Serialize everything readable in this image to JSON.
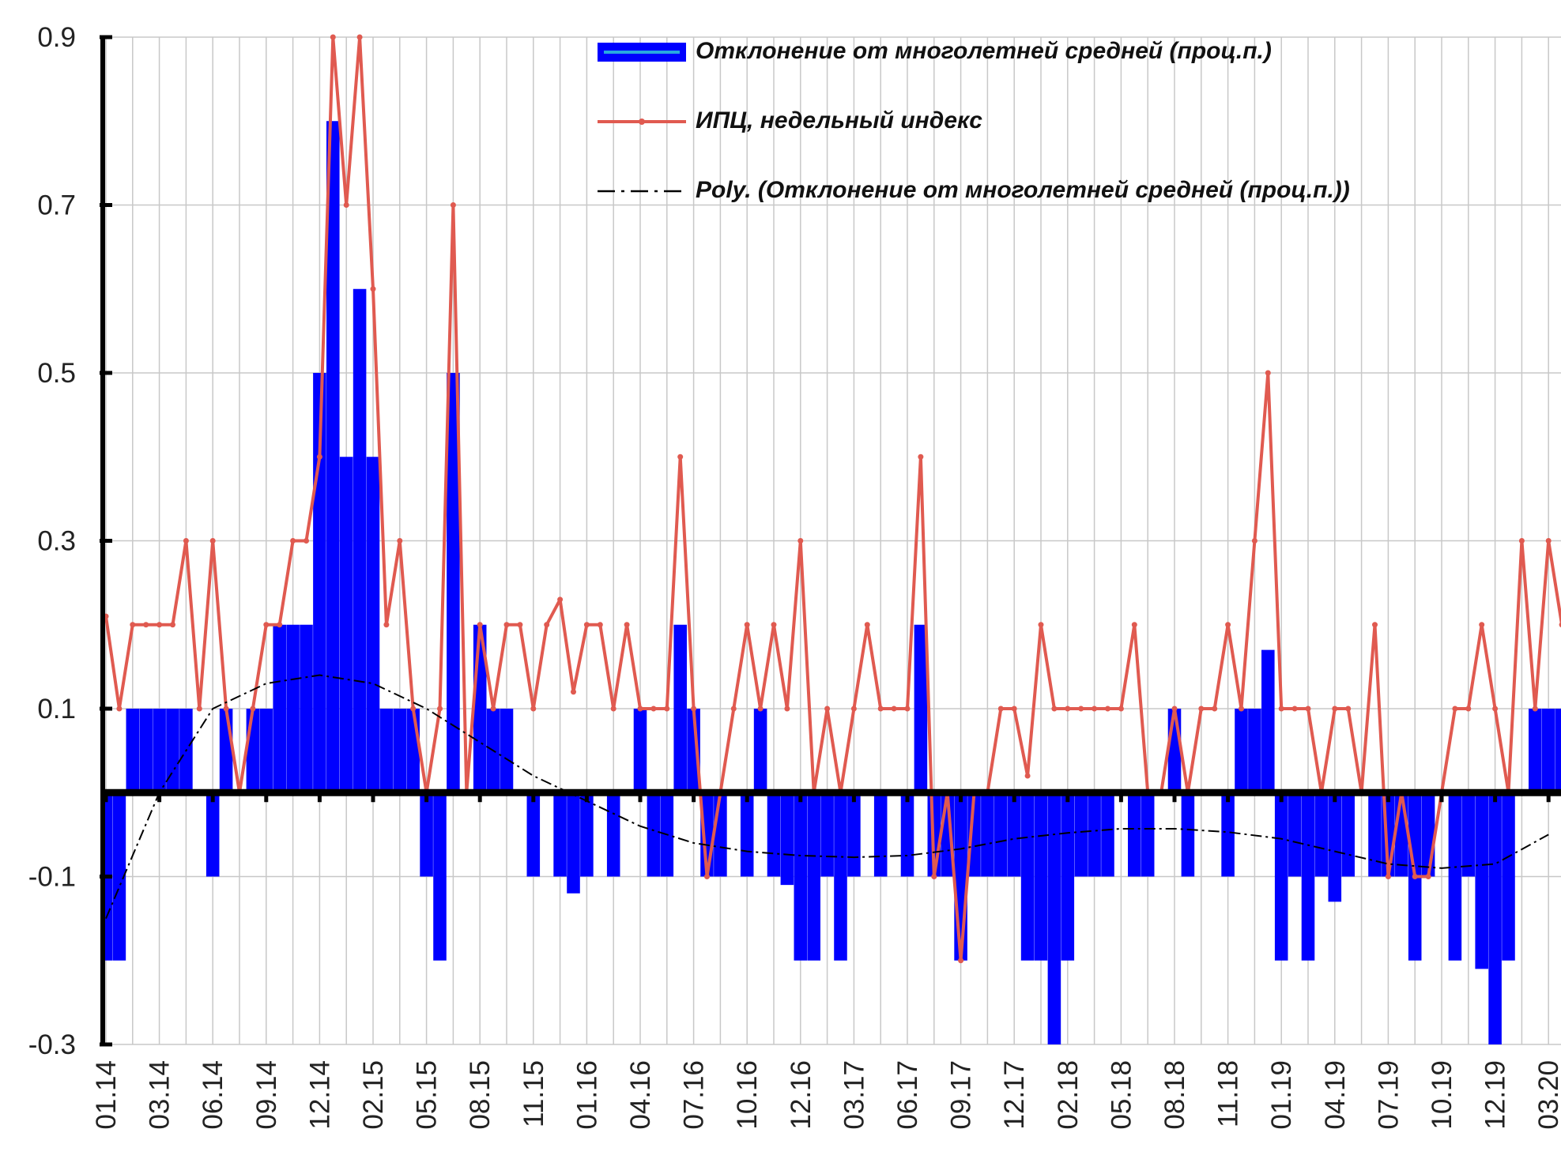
{
  "chart_data": {
    "type": "bar-line",
    "categories": [
      "01.14",
      null,
      null,
      null,
      "03.14",
      null,
      null,
      null,
      "06.14",
      null,
      null,
      null,
      "09.14",
      null,
      null,
      null,
      "12.14",
      null,
      null,
      null,
      "02.15",
      null,
      null,
      null,
      "05.15",
      null,
      null,
      null,
      "08.15",
      null,
      null,
      null,
      "11.15",
      null,
      null,
      null,
      "01.16",
      null,
      null,
      null,
      "04.16",
      null,
      null,
      null,
      "07.16",
      null,
      null,
      null,
      "10.16",
      null,
      null,
      null,
      "12.16",
      null,
      null,
      null,
      "03.17",
      null,
      null,
      null,
      "06.17",
      null,
      null,
      null,
      "09.17",
      null,
      null,
      null,
      "12.17",
      null,
      null,
      null,
      "02.18",
      null,
      null,
      null,
      "05.18",
      null,
      null,
      null,
      "08.18",
      null,
      null,
      null,
      "11.18",
      null,
      null,
      null,
      "01.19",
      null,
      null,
      null,
      "04.19",
      null,
      null,
      null,
      "07.19",
      null,
      null,
      null,
      "10.19",
      null,
      null,
      null,
      "12.19",
      null,
      null,
      null,
      "03.20",
      null,
      null
    ],
    "series": [
      {
        "name": "Отклонение от многолетней средней (проц.п.)",
        "type": "bar",
        "color": "#0000ff",
        "values": [
          -0.2,
          -0.2,
          0.1,
          0.1,
          0.1,
          0.1,
          0.1,
          0,
          -0.1,
          0.1,
          0,
          0.1,
          0.1,
          0.2,
          0.2,
          0.2,
          0.5,
          0.8,
          0.4,
          0.6,
          0.4,
          0.1,
          0.1,
          0.1,
          -0.1,
          -0.2,
          0.5,
          0,
          0.2,
          0.1,
          0.1,
          0,
          -0.1,
          0,
          -0.1,
          -0.12,
          -0.1,
          0,
          -0.1,
          0,
          0.1,
          -0.1,
          -0.1,
          0.2,
          0.1,
          -0.1,
          -0.1,
          0,
          -0.1,
          0.1,
          -0.1,
          -0.11,
          -0.2,
          -0.2,
          -0.1,
          -0.2,
          -0.1,
          0,
          -0.1,
          0,
          -0.1,
          0.2,
          -0.1,
          -0.1,
          -0.2,
          -0.1,
          -0.1,
          -0.1,
          -0.1,
          -0.2,
          -0.2,
          -0.3,
          -0.2,
          -0.1,
          -0.1,
          -0.1,
          0,
          -0.1,
          -0.1,
          0,
          0.1,
          -0.1,
          0,
          0,
          -0.1,
          0.1,
          0.1,
          0.17,
          -0.2,
          -0.1,
          -0.2,
          -0.1,
          -0.13,
          -0.1,
          0,
          -0.1,
          -0.1,
          -0.1,
          -0.2,
          -0.1,
          0,
          -0.2,
          -0.1,
          -0.21,
          -0.3,
          -0.2,
          0,
          0.1,
          0.1,
          0.1,
          0.1
        ]
      },
      {
        "name": "ИПЦ, недельный индекс",
        "type": "line",
        "color": "#e05a50",
        "values": [
          0.21,
          0.1,
          0.2,
          0.2,
          0.2,
          0.2,
          0.3,
          0.1,
          0.3,
          0.1,
          0,
          0.1,
          0.2,
          0.2,
          0.3,
          0.3,
          0.4,
          0.9,
          0.7,
          0.9,
          0.6,
          0.2,
          0.3,
          0.1,
          0,
          0.1,
          0.7,
          0,
          0.2,
          0.1,
          0.2,
          0.2,
          0.1,
          0.2,
          0.23,
          0.12,
          0.2,
          0.2,
          0.1,
          0.2,
          0.1,
          0.1,
          0.1,
          0.4,
          0.1,
          -0.1,
          0,
          0.1,
          0.2,
          0.1,
          0.2,
          0.1,
          0.3,
          0,
          0.1,
          0,
          0.1,
          0.2,
          0.1,
          0.1,
          0.1,
          0.4,
          -0.1,
          0,
          -0.2,
          0,
          0,
          0.1,
          0.1,
          0.02,
          0.2,
          0.1,
          0.1,
          0.1,
          0.1,
          0.1,
          0.1,
          0.2,
          0,
          0,
          0.1,
          0,
          0.1,
          0.1,
          0.2,
          0.1,
          0.3,
          0.5,
          0.1,
          0.1,
          0.1,
          0,
          0.1,
          0.1,
          0,
          0.2,
          -0.1,
          0,
          -0.1,
          -0.1,
          0,
          0.1,
          0.1,
          0.2,
          0.1,
          0,
          0.3,
          0.1,
          0.3,
          0.2,
          0.2
        ]
      },
      {
        "name": "Poly. (Отклонение от многолетней средней (проц.п.))",
        "type": "trend",
        "color": "#000000",
        "x": [
          0,
          4,
          8,
          12,
          16,
          20,
          24,
          28,
          32,
          36,
          40,
          44,
          48,
          52,
          56,
          60,
          64,
          68,
          72,
          76,
          80,
          84,
          88,
          92,
          96,
          100,
          104,
          108
        ],
        "values": [
          -0.15,
          0,
          0.1,
          0.13,
          0.14,
          0.13,
          0.1,
          0.06,
          0.02,
          -0.01,
          -0.04,
          -0.06,
          -0.07,
          -0.075,
          -0.077,
          -0.075,
          -0.067,
          -0.055,
          -0.048,
          -0.043,
          -0.043,
          -0.047,
          -0.055,
          -0.07,
          -0.085,
          -0.09,
          -0.085,
          -0.05
        ]
      }
    ],
    "ylim": [
      -0.3,
      0.9
    ],
    "yticks": [
      0.9,
      0.7,
      0.5,
      0.3,
      0.1,
      -0.1,
      -0.3
    ],
    "grid": true,
    "legend": "top-right"
  }
}
